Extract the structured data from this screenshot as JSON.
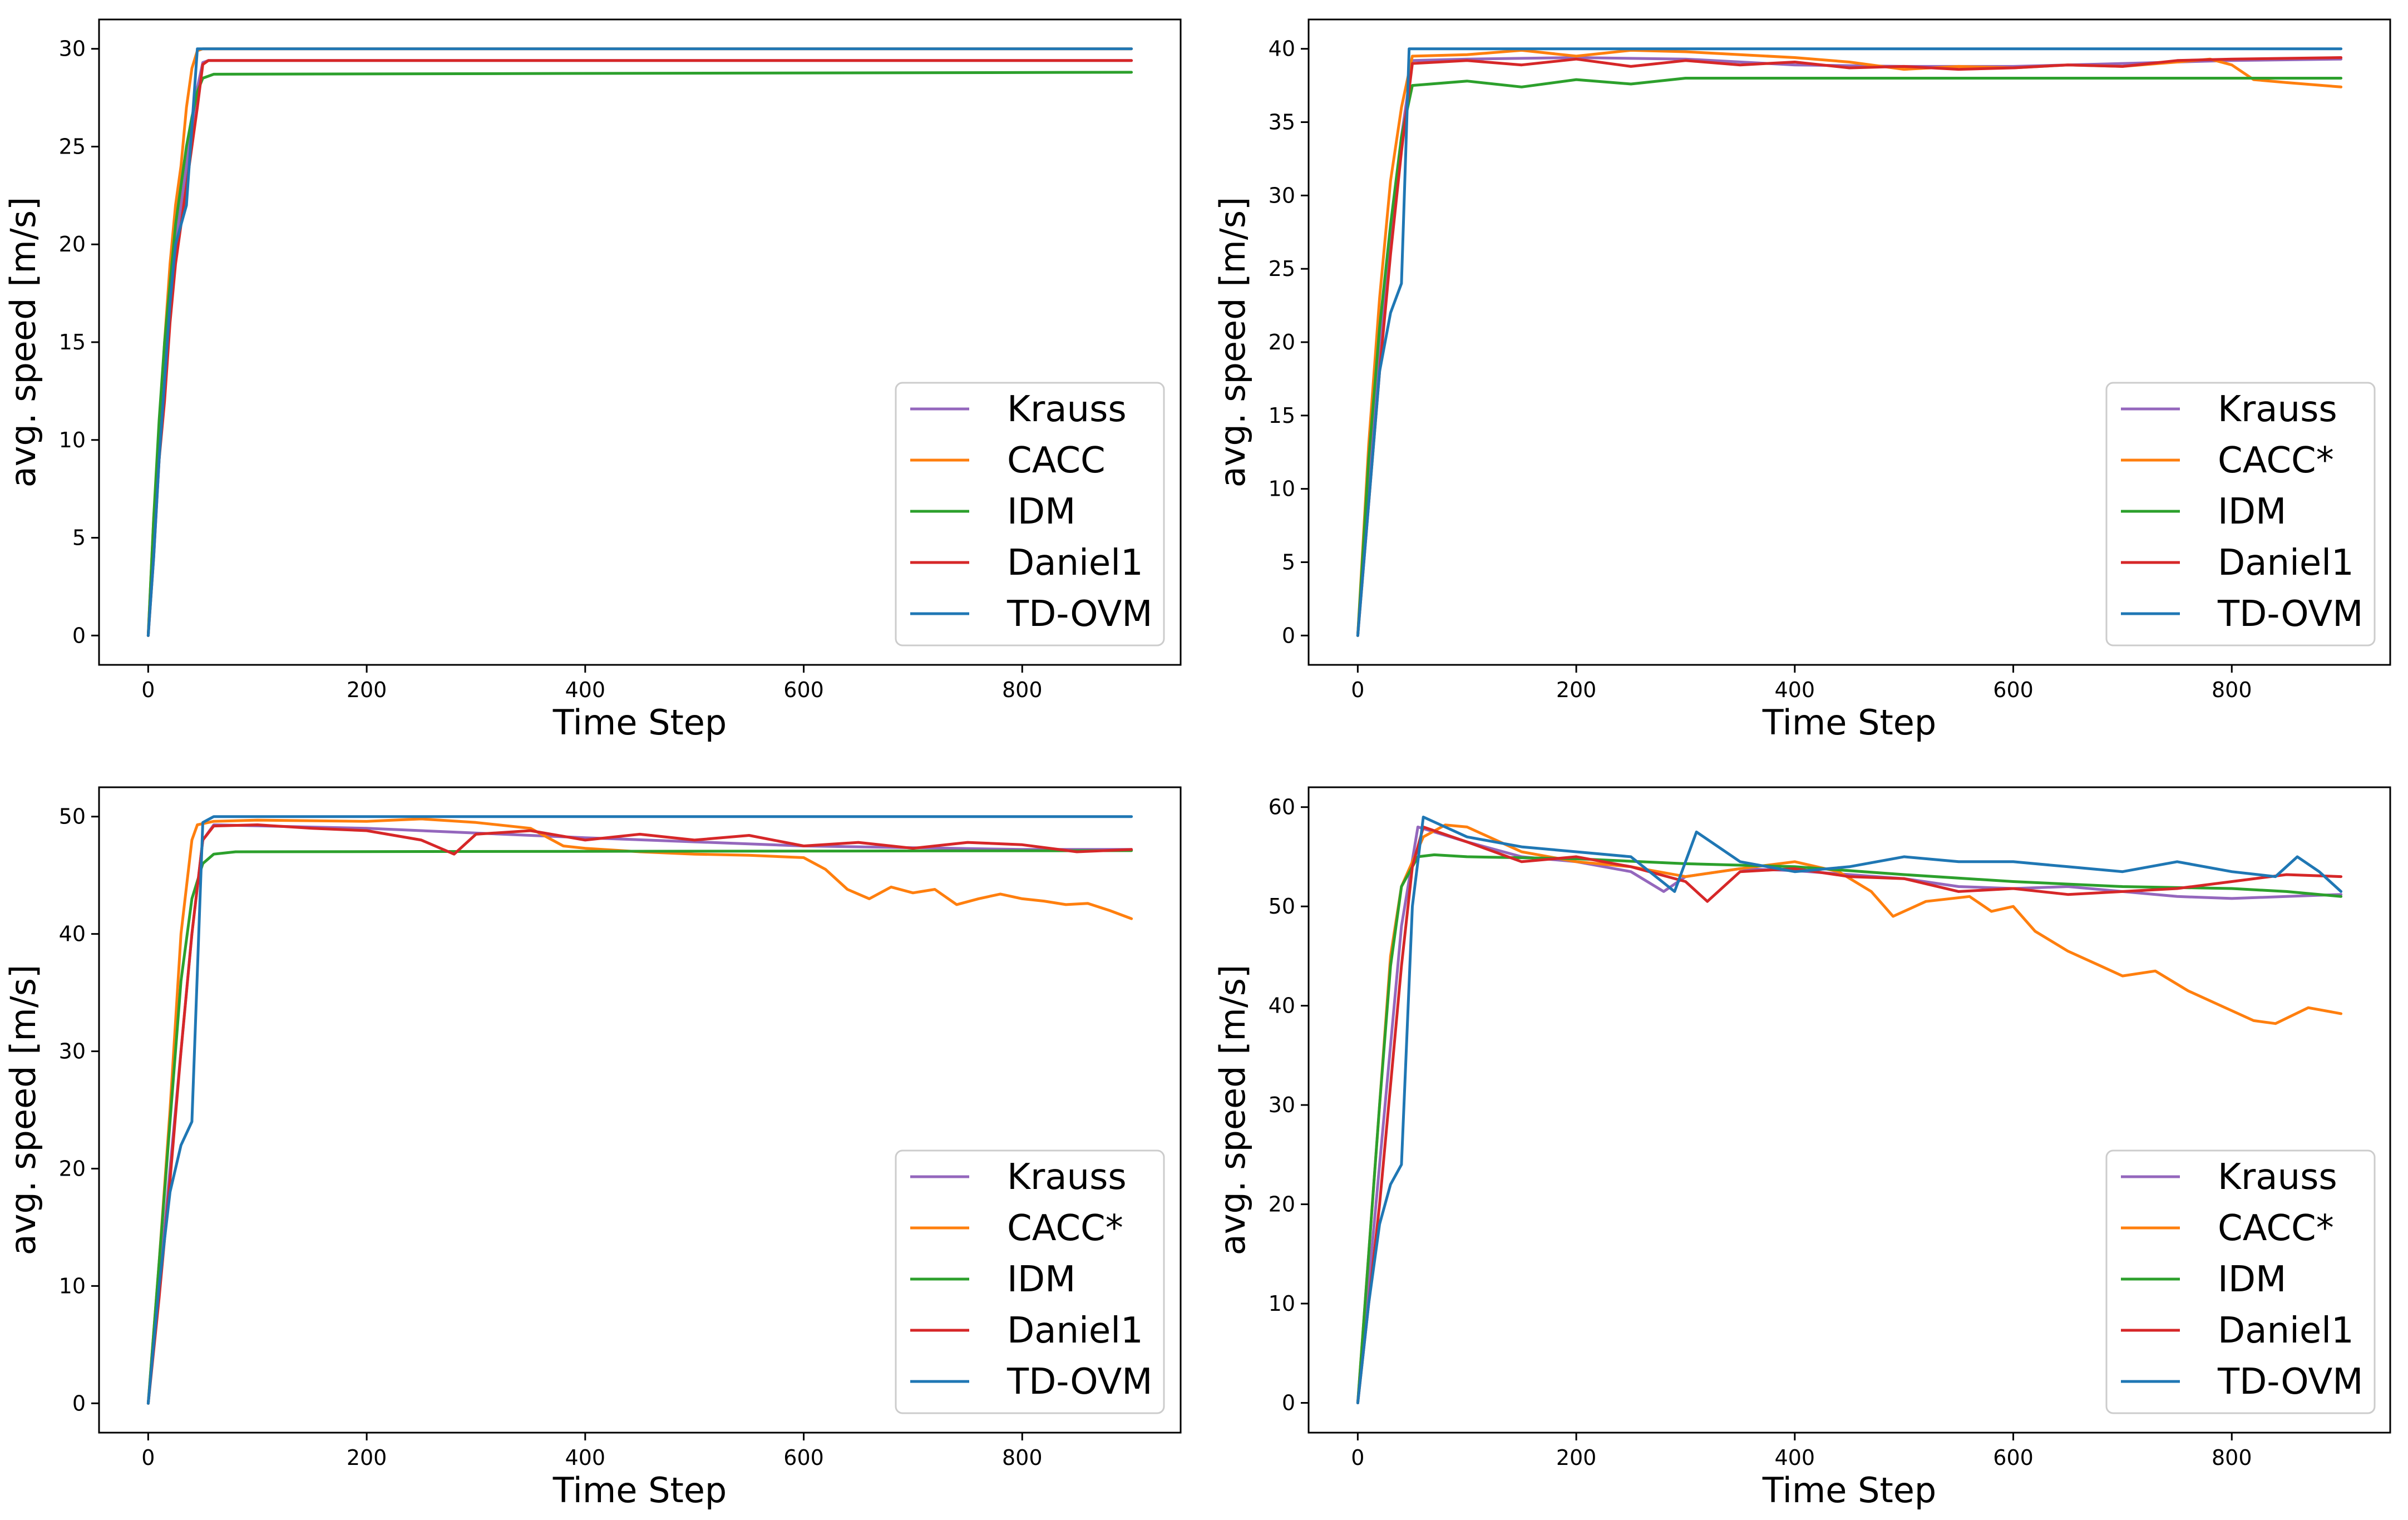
{
  "chart_data": [
    {
      "type": "line",
      "xlabel": "Time Step",
      "ylabel": "avg. speed [m/s]",
      "xlim": [
        -45,
        945
      ],
      "ylim": [
        -1.5,
        31.5
      ],
      "xticks": [
        0,
        200,
        400,
        600,
        800
      ],
      "yticks": [
        0,
        5,
        10,
        15,
        20,
        25,
        30
      ],
      "grid": false,
      "legend_position": "lower-right",
      "series": [
        {
          "name": "Krauss",
          "color": "#9467bd",
          "x": [
            0,
            5,
            10,
            15,
            20,
            25,
            30,
            35,
            40,
            45,
            50,
            55,
            900
          ],
          "y": [
            0,
            5,
            9,
            13,
            17,
            20,
            22,
            24,
            26,
            28,
            29.3,
            29.4,
            29.4
          ]
        },
        {
          "name": "CACC",
          "color": "#ff7f0e",
          "x": [
            0,
            5,
            10,
            15,
            20,
            25,
            30,
            35,
            40,
            45,
            50,
            900
          ],
          "y": [
            0,
            6,
            10,
            15,
            19,
            22,
            24,
            27,
            29,
            29.9,
            30.0,
            30.0
          ]
        },
        {
          "name": "IDM",
          "color": "#2ca02c",
          "x": [
            0,
            5,
            10,
            15,
            20,
            25,
            30,
            35,
            40,
            45,
            50,
            60,
            900
          ],
          "y": [
            0,
            6,
            11,
            15,
            18,
            21,
            23,
            25,
            26.5,
            27.8,
            28.5,
            28.7,
            28.8
          ]
        },
        {
          "name": "Daniel1",
          "color": "#d62728",
          "x": [
            0,
            5,
            10,
            15,
            20,
            25,
            30,
            35,
            40,
            45,
            50,
            55,
            900
          ],
          "y": [
            0,
            4,
            9,
            12,
            16,
            19,
            21,
            23,
            25,
            27,
            29.2,
            29.4,
            29.4
          ]
        },
        {
          "name": "TD-OVM",
          "color": "#1f77b4",
          "x": [
            0,
            5,
            10,
            15,
            20,
            25,
            30,
            35,
            40,
            45,
            900
          ],
          "y": [
            0,
            4,
            9,
            13,
            17,
            20,
            21,
            22,
            26,
            30.0,
            30.0
          ]
        }
      ]
    },
    {
      "type": "line",
      "xlabel": "Time Step",
      "ylabel": "avg. speed [m/s]",
      "xlim": [
        -45,
        945
      ],
      "ylim": [
        -2,
        42
      ],
      "xticks": [
        0,
        200,
        400,
        600,
        800
      ],
      "yticks": [
        0,
        5,
        10,
        15,
        20,
        25,
        30,
        35,
        40
      ],
      "grid": false,
      "legend_position": "lower-right",
      "series": [
        {
          "name": "Krauss",
          "color": "#9467bd",
          "x": [
            0,
            10,
            20,
            30,
            40,
            50,
            100,
            200,
            300,
            400,
            500,
            600,
            700,
            800,
            900
          ],
          "y": [
            0,
            11,
            20,
            27,
            34,
            39.2,
            39.3,
            39.4,
            39.3,
            38.9,
            38.8,
            38.8,
            39.0,
            39.2,
            39.3
          ]
        },
        {
          "name": "CACC*",
          "color": "#ff7f0e",
          "x": [
            0,
            10,
            20,
            30,
            40,
            50,
            100,
            150,
            200,
            250,
            300,
            350,
            400,
            450,
            500,
            550,
            600,
            650,
            700,
            750,
            780,
            800,
            820,
            850,
            900
          ],
          "y": [
            0,
            13,
            23,
            31,
            36,
            39.5,
            39.6,
            39.9,
            39.5,
            39.9,
            39.8,
            39.6,
            39.4,
            39.1,
            38.6,
            38.8,
            38.7,
            38.9,
            38.8,
            39.1,
            39.3,
            38.9,
            37.9,
            37.7,
            37.4
          ]
        },
        {
          "name": "IDM",
          "color": "#2ca02c",
          "x": [
            0,
            10,
            20,
            30,
            40,
            50,
            100,
            150,
            200,
            250,
            300,
            900
          ],
          "y": [
            0,
            12,
            21,
            28,
            34,
            37.5,
            37.8,
            37.4,
            37.9,
            37.6,
            38.0,
            38.0
          ]
        },
        {
          "name": "Daniel1",
          "color": "#d62728",
          "x": [
            0,
            10,
            20,
            30,
            40,
            50,
            100,
            150,
            200,
            250,
            300,
            350,
            400,
            450,
            500,
            550,
            600,
            650,
            700,
            750,
            800,
            900
          ],
          "y": [
            0,
            9,
            18,
            26,
            33,
            39.0,
            39.2,
            38.9,
            39.3,
            38.8,
            39.2,
            38.9,
            39.1,
            38.7,
            38.8,
            38.6,
            38.7,
            38.9,
            38.8,
            39.2,
            39.3,
            39.4
          ]
        },
        {
          "name": "TD-OVM",
          "color": "#1f77b4",
          "x": [
            0,
            10,
            20,
            30,
            40,
            47,
            900
          ],
          "y": [
            0,
            9,
            18,
            22,
            24,
            40.0,
            40.0
          ]
        }
      ]
    },
    {
      "type": "line",
      "xlabel": "Time Step",
      "ylabel": "avg. speed [m/s]",
      "xlim": [
        -45,
        945
      ],
      "ylim": [
        -2.5,
        52.5
      ],
      "xticks": [
        0,
        200,
        400,
        600,
        800
      ],
      "yticks": [
        0,
        10,
        20,
        30,
        40,
        50
      ],
      "grid": false,
      "legend_position": "lower-right",
      "series": [
        {
          "name": "Krauss",
          "color": "#9467bd",
          "x": [
            0,
            10,
            20,
            30,
            40,
            50,
            60,
            200,
            400,
            600,
            800,
            900
          ],
          "y": [
            0,
            10,
            20,
            30,
            40,
            48,
            49.3,
            49.0,
            48.2,
            47.5,
            47.2,
            47.2
          ]
        },
        {
          "name": "CACC*",
          "color": "#ff7f0e",
          "x": [
            0,
            10,
            20,
            30,
            40,
            45,
            60,
            100,
            200,
            250,
            300,
            350,
            380,
            400,
            450,
            500,
            550,
            600,
            620,
            640,
            660,
            680,
            700,
            720,
            740,
            760,
            780,
            800,
            820,
            840,
            860,
            880,
            900
          ],
          "y": [
            0,
            12,
            25,
            40,
            48,
            49.3,
            49.6,
            49.7,
            49.6,
            49.8,
            49.5,
            49.0,
            47.5,
            47.3,
            47.0,
            46.8,
            46.7,
            46.5,
            45.5,
            43.8,
            43.0,
            44.0,
            43.5,
            43.8,
            42.5,
            43.0,
            43.4,
            43.0,
            42.8,
            42.5,
            42.6,
            42.0,
            41.3
          ]
        },
        {
          "name": "IDM",
          "color": "#2ca02c",
          "x": [
            0,
            10,
            20,
            30,
            40,
            50,
            60,
            80,
            900
          ],
          "y": [
            0,
            12,
            24,
            36,
            43,
            46,
            46.8,
            47.0,
            47.1
          ]
        },
        {
          "name": "Daniel1",
          "color": "#d62728",
          "x": [
            0,
            10,
            20,
            30,
            40,
            50,
            60,
            100,
            150,
            200,
            250,
            280,
            300,
            350,
            400,
            450,
            500,
            550,
            600,
            650,
            700,
            750,
            800,
            850,
            900
          ],
          "y": [
            0,
            9,
            19,
            30,
            40,
            48,
            49.2,
            49.3,
            49.0,
            48.8,
            48.0,
            46.8,
            48.5,
            48.8,
            48.0,
            48.5,
            48.0,
            48.4,
            47.5,
            47.8,
            47.3,
            47.8,
            47.6,
            47.0,
            47.2
          ]
        },
        {
          "name": "TD-OVM",
          "color": "#1f77b4",
          "x": [
            0,
            10,
            20,
            30,
            40,
            50,
            60,
            900
          ],
          "y": [
            0,
            10,
            18,
            22,
            24,
            49.5,
            50.0,
            50.0
          ]
        }
      ]
    },
    {
      "type": "line",
      "xlabel": "Time Step",
      "ylabel": "avg. speed [m/s]",
      "xlim": [
        -45,
        945
      ],
      "ylim": [
        -3,
        62
      ],
      "xticks": [
        0,
        200,
        400,
        600,
        800
      ],
      "yticks": [
        0,
        10,
        20,
        30,
        40,
        50,
        60
      ],
      "grid": false,
      "legend_position": "lower-right",
      "series": [
        {
          "name": "Krauss",
          "color": "#9467bd",
          "x": [
            0,
            10,
            20,
            30,
            40,
            55,
            100,
            150,
            200,
            250,
            280,
            300,
            350,
            400,
            450,
            500,
            550,
            600,
            650,
            700,
            750,
            800,
            850,
            900
          ],
          "y": [
            0,
            12,
            24,
            36,
            48,
            58,
            56.5,
            55.0,
            54.5,
            53.5,
            51.5,
            53.0,
            53.8,
            53.6,
            53.2,
            52.8,
            52.0,
            51.8,
            52.0,
            51.5,
            51.0,
            50.8,
            51.0,
            51.2
          ]
        },
        {
          "name": "CACC*",
          "color": "#ff7f0e",
          "x": [
            0,
            10,
            20,
            30,
            40,
            60,
            80,
            100,
            150,
            200,
            250,
            300,
            350,
            400,
            440,
            470,
            490,
            520,
            560,
            580,
            600,
            620,
            650,
            680,
            700,
            730,
            760,
            790,
            820,
            840,
            870,
            900
          ],
          "y": [
            0,
            15,
            30,
            45,
            52,
            57,
            58.2,
            58.0,
            55.5,
            54.5,
            54.0,
            53.0,
            53.8,
            54.5,
            53.5,
            51.5,
            49.0,
            50.5,
            51.0,
            49.5,
            50.0,
            47.5,
            45.5,
            44.0,
            43.0,
            43.5,
            41.5,
            40.0,
            38.5,
            38.2,
            39.8,
            39.2
          ]
        },
        {
          "name": "IDM",
          "color": "#2ca02c",
          "x": [
            0,
            10,
            20,
            30,
            40,
            55,
            70,
            100,
            200,
            300,
            400,
            500,
            600,
            700,
            800,
            850,
            900
          ],
          "y": [
            0,
            15,
            30,
            44,
            52,
            55,
            55.2,
            55.0,
            54.8,
            54.3,
            54.0,
            53.2,
            52.5,
            52.0,
            51.8,
            51.5,
            51.0
          ]
        },
        {
          "name": "Daniel1",
          "color": "#d62728",
          "x": [
            0,
            10,
            20,
            30,
            40,
            50,
            60,
            100,
            150,
            200,
            250,
            300,
            320,
            350,
            400,
            450,
            500,
            550,
            600,
            650,
            700,
            750,
            800,
            850,
            900
          ],
          "y": [
            0,
            10,
            20,
            32,
            44,
            54,
            58,
            56.5,
            54.5,
            55.0,
            54.0,
            52.5,
            50.5,
            53.5,
            53.8,
            53.0,
            52.8,
            51.5,
            51.8,
            51.2,
            51.5,
            51.8,
            52.5,
            53.2,
            53.0
          ]
        },
        {
          "name": "TD-OVM",
          "color": "#1f77b4",
          "x": [
            0,
            10,
            20,
            30,
            40,
            50,
            60,
            100,
            150,
            200,
            250,
            290,
            310,
            350,
            400,
            450,
            500,
            550,
            600,
            650,
            700,
            750,
            800,
            840,
            860,
            880,
            900
          ],
          "y": [
            0,
            10,
            18,
            22,
            24,
            50,
            59,
            57.0,
            56.0,
            55.5,
            55.0,
            51.5,
            57.5,
            54.5,
            53.5,
            54.0,
            55.0,
            54.5,
            54.5,
            54.0,
            53.5,
            54.5,
            53.5,
            53.0,
            55.0,
            53.5,
            51.5
          ]
        }
      ]
    }
  ]
}
